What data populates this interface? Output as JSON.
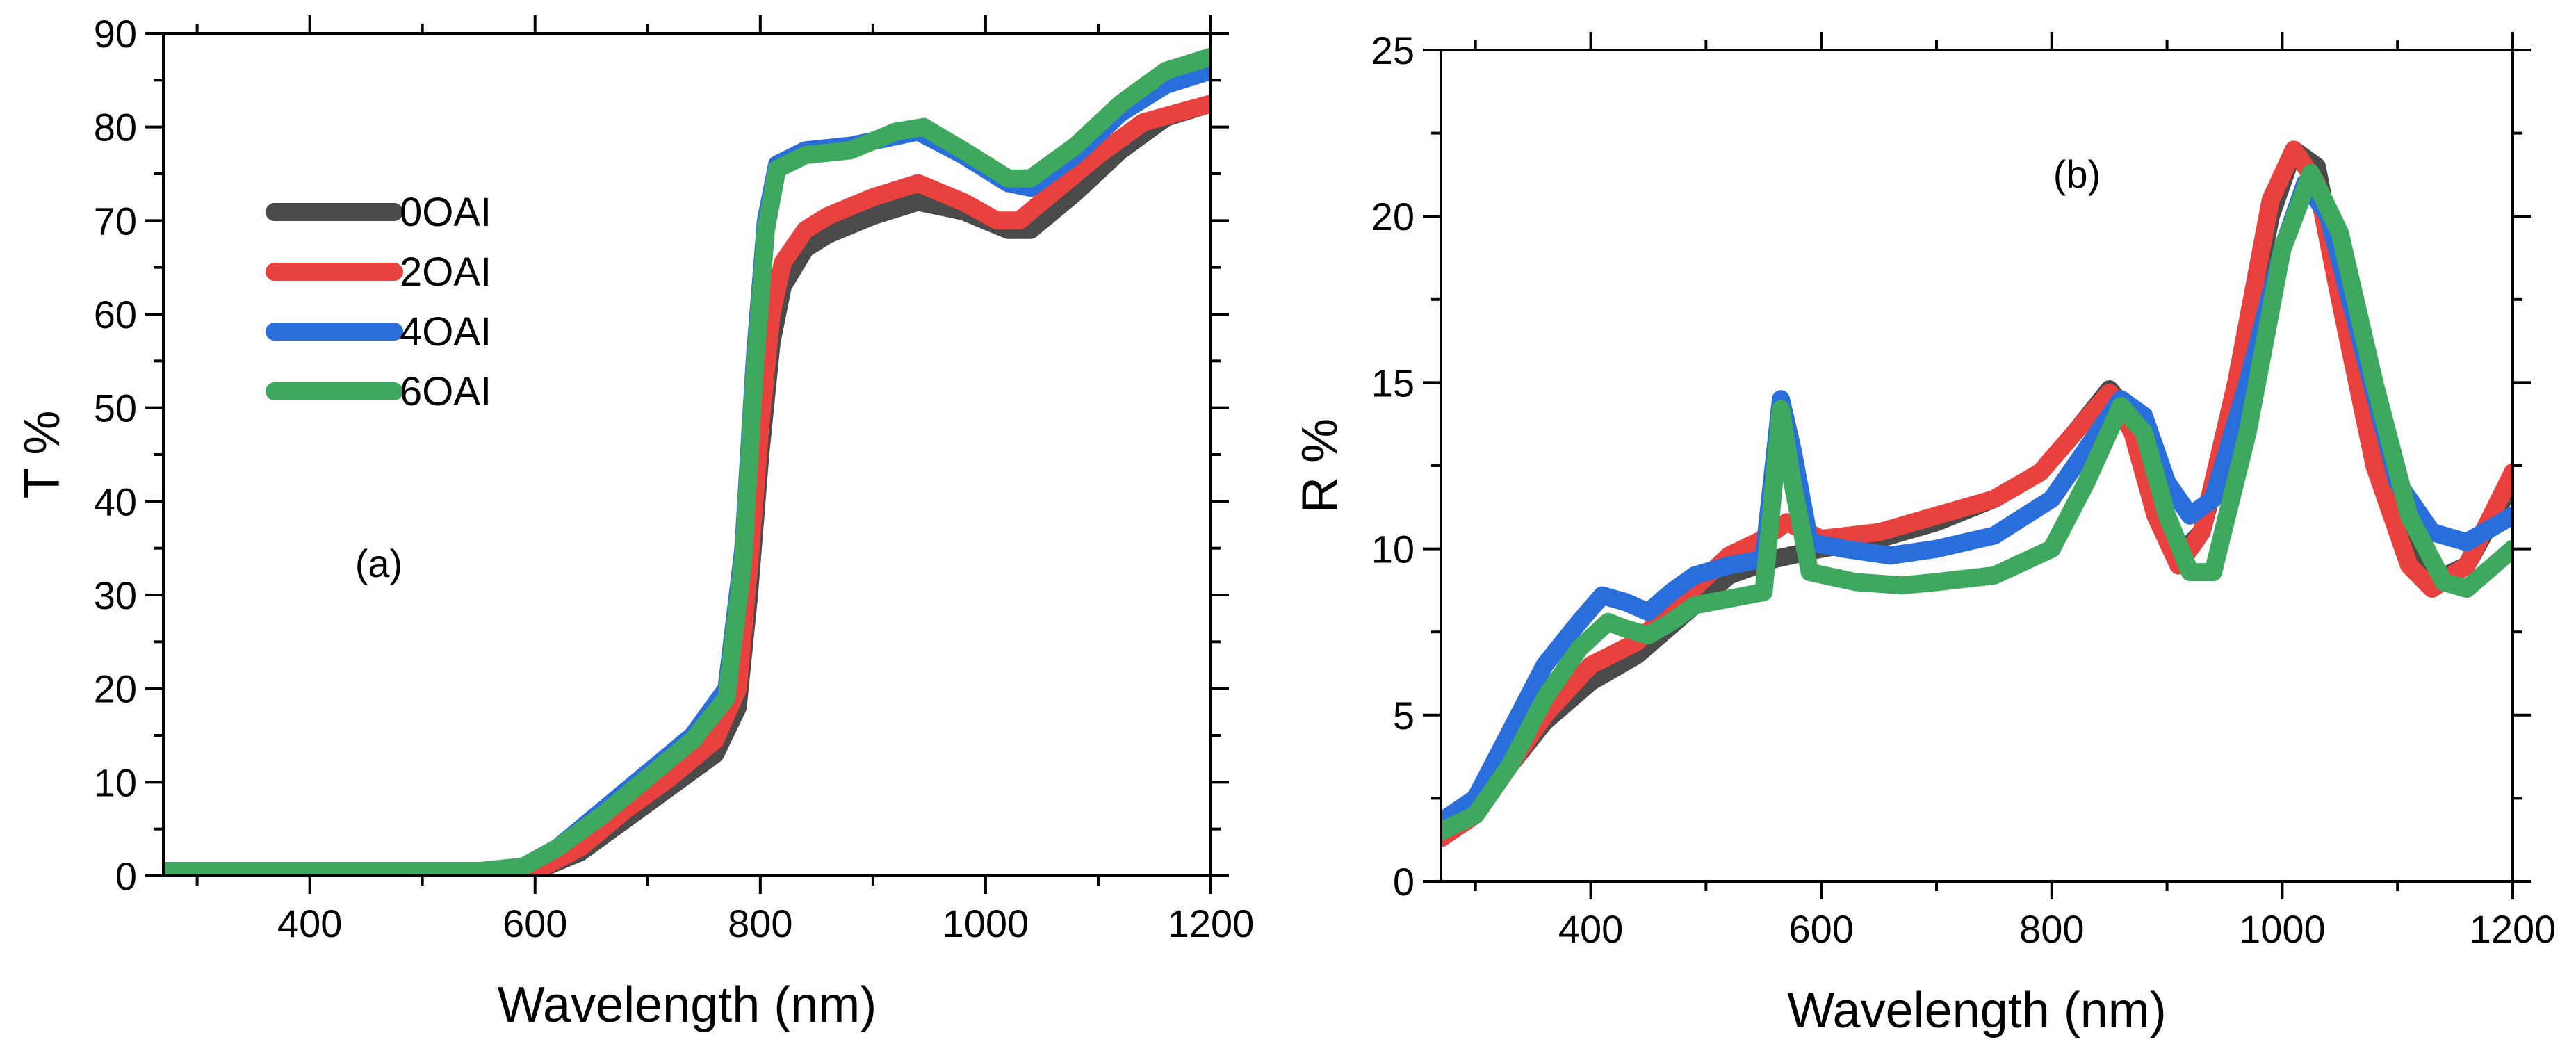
{
  "chart_data": [
    {
      "id": "a",
      "type": "line",
      "annotation": "(a)",
      "xlabel": "Wavelength (nm)",
      "ylabel": "T %",
      "xlim": [
        270,
        1200
      ],
      "ylim": [
        0,
        90
      ],
      "xticks": [
        400,
        600,
        800,
        1000,
        1200
      ],
      "yticks": [
        0,
        10,
        20,
        30,
        40,
        50,
        60,
        70,
        80,
        90
      ],
      "legend": {
        "position": "upper-left",
        "entries": [
          "0OAI",
          "2OAI",
          "4OAI",
          "6OAI"
        ]
      },
      "series": [
        {
          "name": "0OAI",
          "color": "#4a4a4a",
          "points": [
            [
              270,
              0.5
            ],
            [
              400,
              0.5
            ],
            [
              550,
              0.5
            ],
            [
              600,
              0.5
            ],
            [
              640,
              2.5
            ],
            [
              680,
              6
            ],
            [
              720,
              9.5
            ],
            [
              760,
              13
            ],
            [
              780,
              18
            ],
            [
              790,
              30
            ],
            [
              800,
              45
            ],
            [
              810,
              57
            ],
            [
              820,
              63
            ],
            [
              840,
              67
            ],
            [
              860,
              68.5
            ],
            [
              900,
              70.5
            ],
            [
              940,
              72
            ],
            [
              980,
              71
            ],
            [
              1020,
              69
            ],
            [
              1040,
              69
            ],
            [
              1080,
              73
            ],
            [
              1120,
              77.5
            ],
            [
              1160,
              81
            ],
            [
              1200,
              82.5
            ]
          ]
        },
        {
          "name": "2OAI",
          "color": "#e8413e",
          "points": [
            [
              270,
              0.5
            ],
            [
              400,
              0.5
            ],
            [
              550,
              0.5
            ],
            [
              600,
              0.5
            ],
            [
              640,
              3
            ],
            [
              680,
              7
            ],
            [
              720,
              10.5
            ],
            [
              760,
              14.5
            ],
            [
              780,
              20
            ],
            [
              790,
              33
            ],
            [
              800,
              48
            ],
            [
              810,
              60
            ],
            [
              820,
              65.5
            ],
            [
              840,
              69
            ],
            [
              860,
              70.5
            ],
            [
              900,
              72.5
            ],
            [
              940,
              74
            ],
            [
              980,
              72
            ],
            [
              1010,
              70
            ],
            [
              1030,
              70
            ],
            [
              1060,
              73
            ],
            [
              1100,
              77
            ],
            [
              1140,
              80.5
            ],
            [
              1200,
              82.5
            ]
          ]
        },
        {
          "name": "4OAI",
          "color": "#2a6edb",
          "points": [
            [
              270,
              0.5
            ],
            [
              400,
              0.5
            ],
            [
              550,
              0.5
            ],
            [
              590,
              1
            ],
            [
              620,
              3
            ],
            [
              660,
              7
            ],
            [
              700,
              11
            ],
            [
              740,
              15
            ],
            [
              770,
              20
            ],
            [
              785,
              35
            ],
            [
              795,
              55
            ],
            [
              805,
              70
            ],
            [
              815,
              76
            ],
            [
              840,
              77.5
            ],
            [
              880,
              78
            ],
            [
              920,
              79
            ],
            [
              940,
              79.5
            ],
            [
              980,
              77
            ],
            [
              1020,
              74
            ],
            [
              1040,
              73.5
            ],
            [
              1080,
              77
            ],
            [
              1120,
              81.5
            ],
            [
              1160,
              84.5
            ],
            [
              1200,
              86
            ]
          ]
        },
        {
          "name": "6OAI",
          "color": "#3ea95e",
          "points": [
            [
              270,
              0.5
            ],
            [
              400,
              0.5
            ],
            [
              550,
              0.5
            ],
            [
              590,
              1
            ],
            [
              620,
              3
            ],
            [
              660,
              6.5
            ],
            [
              700,
              10.5
            ],
            [
              740,
              14.5
            ],
            [
              770,
              19
            ],
            [
              785,
              34
            ],
            [
              795,
              54
            ],
            [
              805,
              69
            ],
            [
              815,
              75.5
            ],
            [
              840,
              77
            ],
            [
              880,
              77.5
            ],
            [
              920,
              79.5
            ],
            [
              945,
              80
            ],
            [
              980,
              77.5
            ],
            [
              1020,
              74.5
            ],
            [
              1040,
              74.5
            ],
            [
              1080,
              78
            ],
            [
              1120,
              82.5
            ],
            [
              1160,
              86
            ],
            [
              1200,
              87.5
            ]
          ]
        }
      ]
    },
    {
      "id": "b",
      "type": "line",
      "annotation": "(b)",
      "xlabel": "Wavelength (nm)",
      "ylabel": "R %",
      "xlim": [
        270,
        1200
      ],
      "ylim": [
        0,
        25
      ],
      "xticks": [
        400,
        600,
        800,
        1000,
        1200
      ],
      "yticks": [
        0,
        5,
        10,
        15,
        20,
        25
      ],
      "series": [
        {
          "name": "0OAI",
          "color": "#4a4a4a",
          "points": [
            [
              270,
              1.5
            ],
            [
              300,
              2
            ],
            [
              330,
              3.5
            ],
            [
              360,
              4.8
            ],
            [
              400,
              6
            ],
            [
              440,
              6.8
            ],
            [
              480,
              8
            ],
            [
              520,
              9.2
            ],
            [
              560,
              9.7
            ],
            [
              600,
              10
            ],
            [
              650,
              10.3
            ],
            [
              700,
              10.8
            ],
            [
              750,
              11.5
            ],
            [
              790,
              12.3
            ],
            [
              820,
              13.5
            ],
            [
              850,
              14.8
            ],
            [
              870,
              14
            ],
            [
              890,
              11.5
            ],
            [
              910,
              9.8
            ],
            [
              930,
              10.5
            ],
            [
              960,
              14.5
            ],
            [
              990,
              20
            ],
            [
              1010,
              22
            ],
            [
              1030,
              21.5
            ],
            [
              1050,
              18
            ],
            [
              1080,
              13
            ],
            [
              1110,
              10
            ],
            [
              1130,
              9
            ],
            [
              1160,
              9.5
            ],
            [
              1200,
              12
            ]
          ]
        },
        {
          "name": "2OAI",
          "color": "#e8413e",
          "points": [
            [
              270,
              1.3
            ],
            [
              300,
              2
            ],
            [
              330,
              3.5
            ],
            [
              360,
              5
            ],
            [
              400,
              6.5
            ],
            [
              440,
              7.2
            ],
            [
              480,
              8.5
            ],
            [
              520,
              9.8
            ],
            [
              550,
              10.3
            ],
            [
              570,
              10.8
            ],
            [
              600,
              10.3
            ],
            [
              650,
              10.5
            ],
            [
              700,
              11
            ],
            [
              750,
              11.5
            ],
            [
              790,
              12.3
            ],
            [
              820,
              13.5
            ],
            [
              850,
              14.7
            ],
            [
              870,
              13.5
            ],
            [
              890,
              11
            ],
            [
              910,
              9.5
            ],
            [
              930,
              10.5
            ],
            [
              960,
              15
            ],
            [
              990,
              20.5
            ],
            [
              1010,
              22
            ],
            [
              1030,
              21
            ],
            [
              1050,
              17.5
            ],
            [
              1080,
              12.5
            ],
            [
              1110,
              9.5
            ],
            [
              1130,
              8.8
            ],
            [
              1160,
              9.5
            ],
            [
              1200,
              12.3
            ]
          ]
        },
        {
          "name": "4OAI",
          "color": "#2a6edb",
          "points": [
            [
              270,
              1.8
            ],
            [
              300,
              2.5
            ],
            [
              330,
              4.5
            ],
            [
              360,
              6.5
            ],
            [
              390,
              7.8
            ],
            [
              410,
              8.6
            ],
            [
              430,
              8.4
            ],
            [
              450,
              8.1
            ],
            [
              470,
              8.7
            ],
            [
              490,
              9.2
            ],
            [
              520,
              9.5
            ],
            [
              550,
              9.7
            ],
            [
              565,
              14.5
            ],
            [
              575,
              13
            ],
            [
              590,
              10.2
            ],
            [
              620,
              10
            ],
            [
              660,
              9.8
            ],
            [
              700,
              10
            ],
            [
              750,
              10.4
            ],
            [
              800,
              11.5
            ],
            [
              830,
              13
            ],
            [
              860,
              14.5
            ],
            [
              880,
              14
            ],
            [
              900,
              12
            ],
            [
              920,
              11
            ],
            [
              940,
              11.5
            ],
            [
              970,
              15
            ],
            [
              1000,
              19
            ],
            [
              1020,
              21
            ],
            [
              1040,
              20
            ],
            [
              1070,
              16
            ],
            [
              1100,
              12
            ],
            [
              1130,
              10.5
            ],
            [
              1160,
              10.2
            ],
            [
              1200,
              11
            ]
          ]
        },
        {
          "name": "6OAI",
          "color": "#3ea95e",
          "points": [
            [
              270,
              1.5
            ],
            [
              300,
              2
            ],
            [
              330,
              3.5
            ],
            [
              360,
              5.5
            ],
            [
              390,
              7
            ],
            [
              415,
              7.8
            ],
            [
              430,
              7.6
            ],
            [
              450,
              7.4
            ],
            [
              470,
              7.8
            ],
            [
              490,
              8.3
            ],
            [
              520,
              8.5
            ],
            [
              550,
              8.7
            ],
            [
              565,
              14.2
            ],
            [
              575,
              12
            ],
            [
              590,
              9.3
            ],
            [
              630,
              9
            ],
            [
              670,
              8.9
            ],
            [
              700,
              9
            ],
            [
              750,
              9.2
            ],
            [
              800,
              10
            ],
            [
              830,
              12
            ],
            [
              860,
              14.3
            ],
            [
              880,
              13.5
            ],
            [
              900,
              11
            ],
            [
              920,
              9.3
            ],
            [
              940,
              9.3
            ],
            [
              970,
              13.5
            ],
            [
              1000,
              19
            ],
            [
              1025,
              21.3
            ],
            [
              1050,
              19.5
            ],
            [
              1080,
              15
            ],
            [
              1110,
              11
            ],
            [
              1140,
              9
            ],
            [
              1160,
              8.8
            ],
            [
              1200,
              10
            ]
          ]
        }
      ]
    }
  ]
}
